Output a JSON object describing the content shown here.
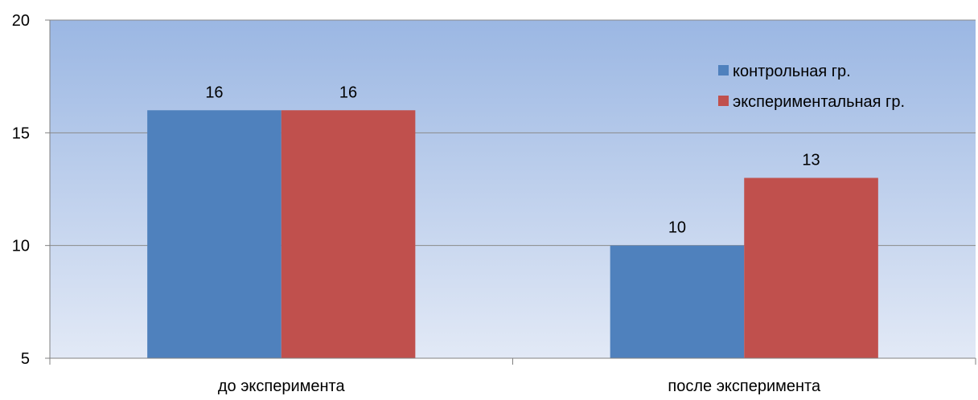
{
  "chart_data": {
    "type": "bar",
    "categories": [
      "до эксперимента",
      "после эксперимента"
    ],
    "series": [
      {
        "name": "контрольная гр.",
        "values": [
          16,
          10
        ],
        "color": "#4F81BD"
      },
      {
        "name": "экспериментальная гр.",
        "values": [
          16,
          13
        ],
        "color": "#C0504D"
      }
    ],
    "ylim": [
      5,
      20
    ],
    "yticks": [
      5,
      10,
      15,
      20
    ],
    "grid": true,
    "legend_position": "top-right",
    "plot_background": [
      "#9BB7E3",
      "#E2E9F6"
    ]
  }
}
